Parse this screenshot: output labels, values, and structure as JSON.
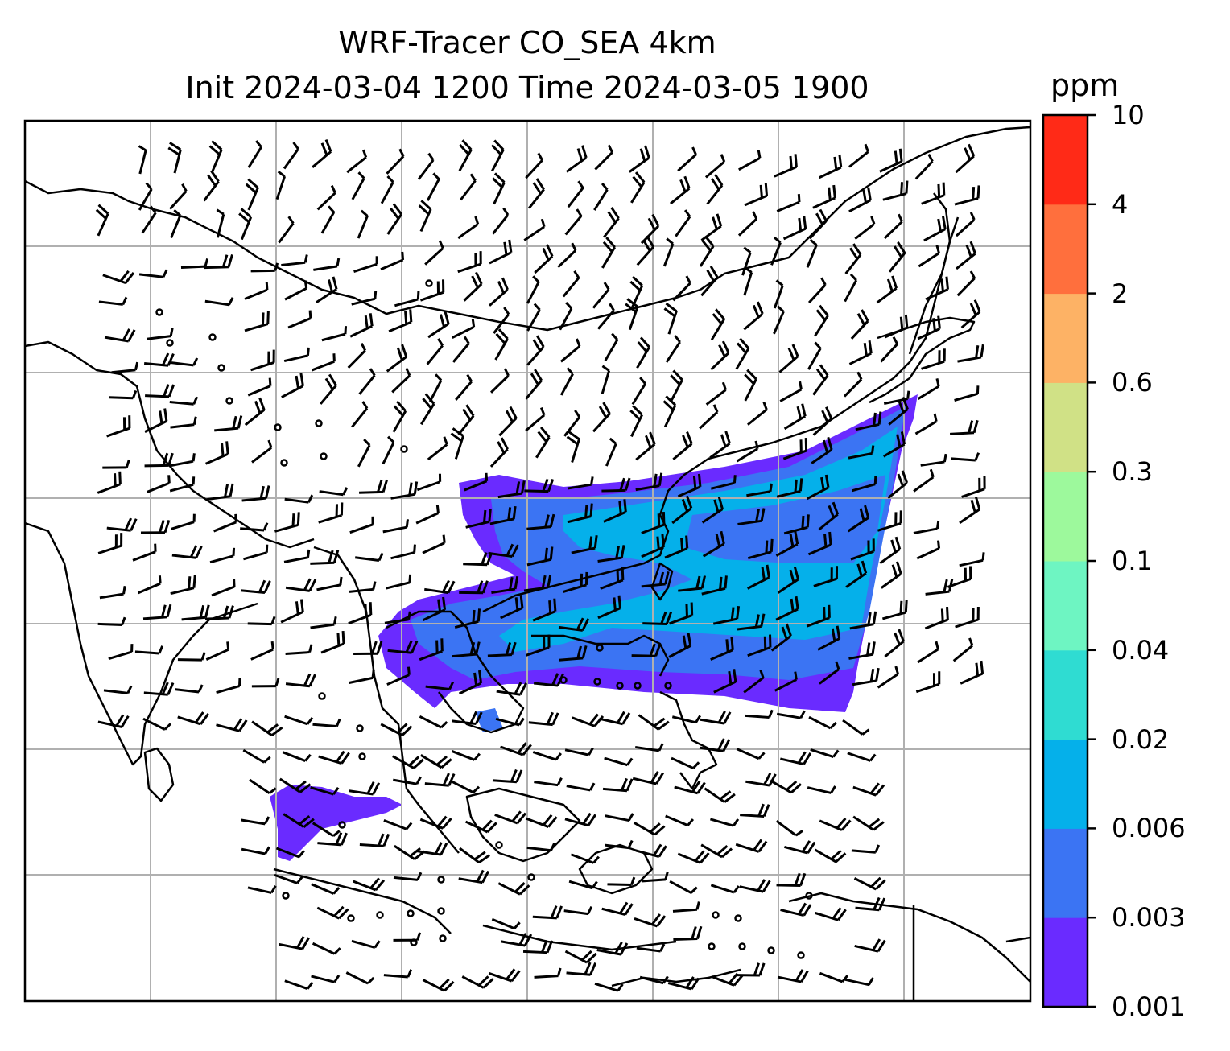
{
  "title_line1": "WRF-Tracer CO_SEA 4km",
  "title_line2": "Init 2024-03-04 1200 Time 2024-03-05 1900",
  "colorbar": {
    "unit": "ppm",
    "levels": [
      "0.001",
      "0.003",
      "0.006",
      "0.02",
      "0.04",
      "0.1",
      "0.3",
      "0.6",
      "2",
      "4",
      "10"
    ],
    "colors": [
      "#6a2bff",
      "#3b74f3",
      "#05b0ea",
      "#2fdcd2",
      "#6ef5c2",
      "#9df99c",
      "#d0e186",
      "#fdb265",
      "#ff6f3d",
      "#ff2a17"
    ]
  },
  "map": {
    "gridlines": "on",
    "barb_color": "#000000",
    "coast_color": "#000000",
    "grid_color": "#b0b0b0"
  }
}
